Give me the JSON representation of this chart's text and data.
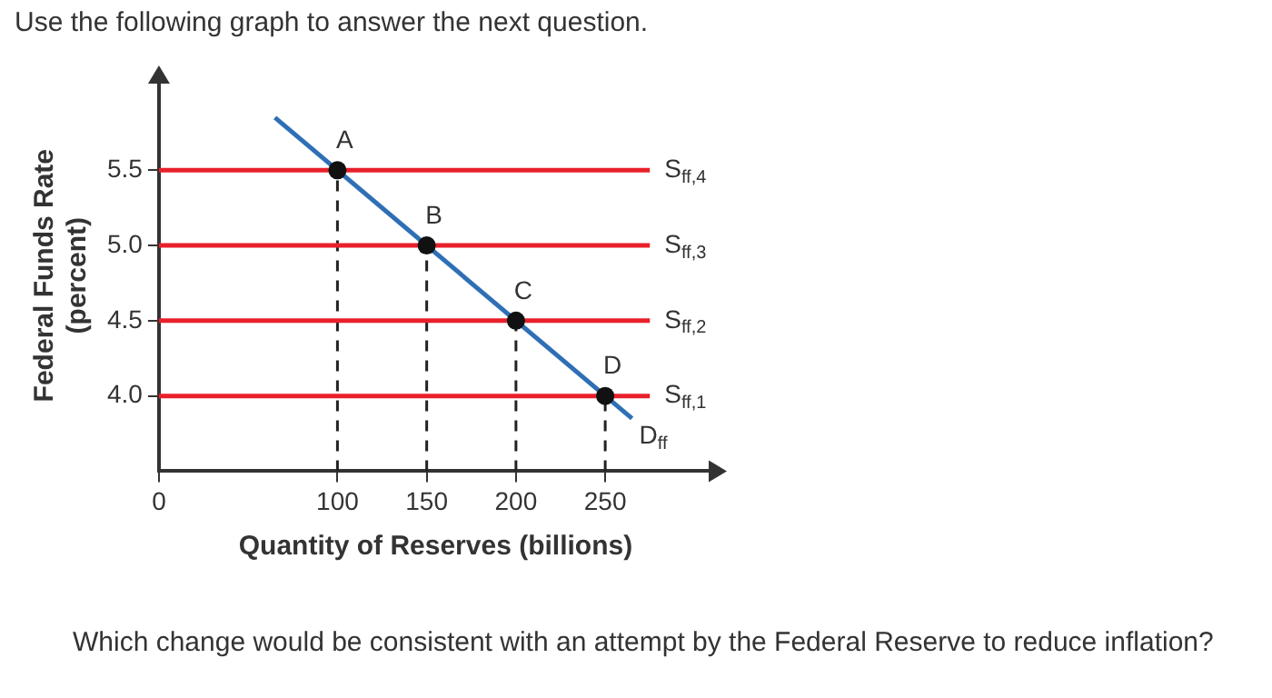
{
  "chart_data": {
    "type": "line",
    "title": "Use the following graph to answer the next question.",
    "xlabel": "Quantity of Reserves (billions)",
    "ylabel": "Federal Funds Rate\n(percent)",
    "xlim": [
      0,
      310
    ],
    "xticks": [
      0,
      100,
      150,
      200,
      250
    ],
    "ylim": [
      3.5,
      6.1
    ],
    "yticks": [
      {
        "value": 4,
        "label": "4.0"
      },
      {
        "value": 4.5,
        "label": "4.5"
      },
      {
        "value": 5,
        "label": "5.0"
      },
      {
        "value": 5.5,
        "label": "5.5"
      }
    ],
    "grid": false,
    "legend": false,
    "marker": "none",
    "line_style": "solid",
    "series": [
      {
        "name": "S$_{ff,4}$",
        "color": "#e8202a",
        "x": [
          0,
          275
        ],
        "values": [
          5.5,
          5.5
        ]
      },
      {
        "name": "S$_{ff,3}$",
        "color": "#e8202a",
        "x": [
          0,
          275
        ],
        "values": [
          5,
          5
        ]
      },
      {
        "name": "S$_{ff,2}$",
        "color": "#e8202a",
        "x": [
          0,
          275
        ],
        "values": [
          4.5,
          4.5
        ]
      },
      {
        "name": "S$_{ff,1}$",
        "color": "#e8202a",
        "x": [
          0,
          275
        ],
        "values": [
          4,
          4
        ]
      },
      {
        "color": "#222222",
        "line_style": "dashed",
        "x": [
          100,
          100
        ],
        "values": [
          3.5,
          5.5
        ]
      },
      {
        "color": "#222222",
        "line_style": "dashed",
        "x": [
          150,
          150
        ],
        "values": [
          3.5,
          5
        ]
      },
      {
        "color": "#222222",
        "line_style": "dashed",
        "x": [
          200,
          200
        ],
        "values": [
          3.5,
          4.5
        ]
      },
      {
        "color": "#222222",
        "line_style": "dashed",
        "x": [
          250,
          250
        ],
        "values": [
          3.5,
          4
        ]
      },
      {
        "name": "D$_{ff}$",
        "color": "#2f6fb5",
        "x": [
          65,
          265
        ],
        "values": [
          5.85,
          3.85
        ]
      },
      {
        "type": "scatter",
        "marker": "circle",
        "color": "#111111",
        "x": [
          100,
          150,
          200,
          250
        ],
        "values": [
          5.5,
          5,
          4.5,
          4
        ]
      }
    ],
    "annotations": [
      {
        "text": "A",
        "x": 100,
        "y": 5.5
      },
      {
        "text": "B",
        "x": 150,
        "y": 5
      },
      {
        "text": "C",
        "x": 200,
        "y": 4.5
      },
      {
        "text": "D",
        "x": 250,
        "y": 4
      },
      "Which change would be consistent with an attempt by the Federal Reserve to reduce inflation?"
    ]
  }
}
